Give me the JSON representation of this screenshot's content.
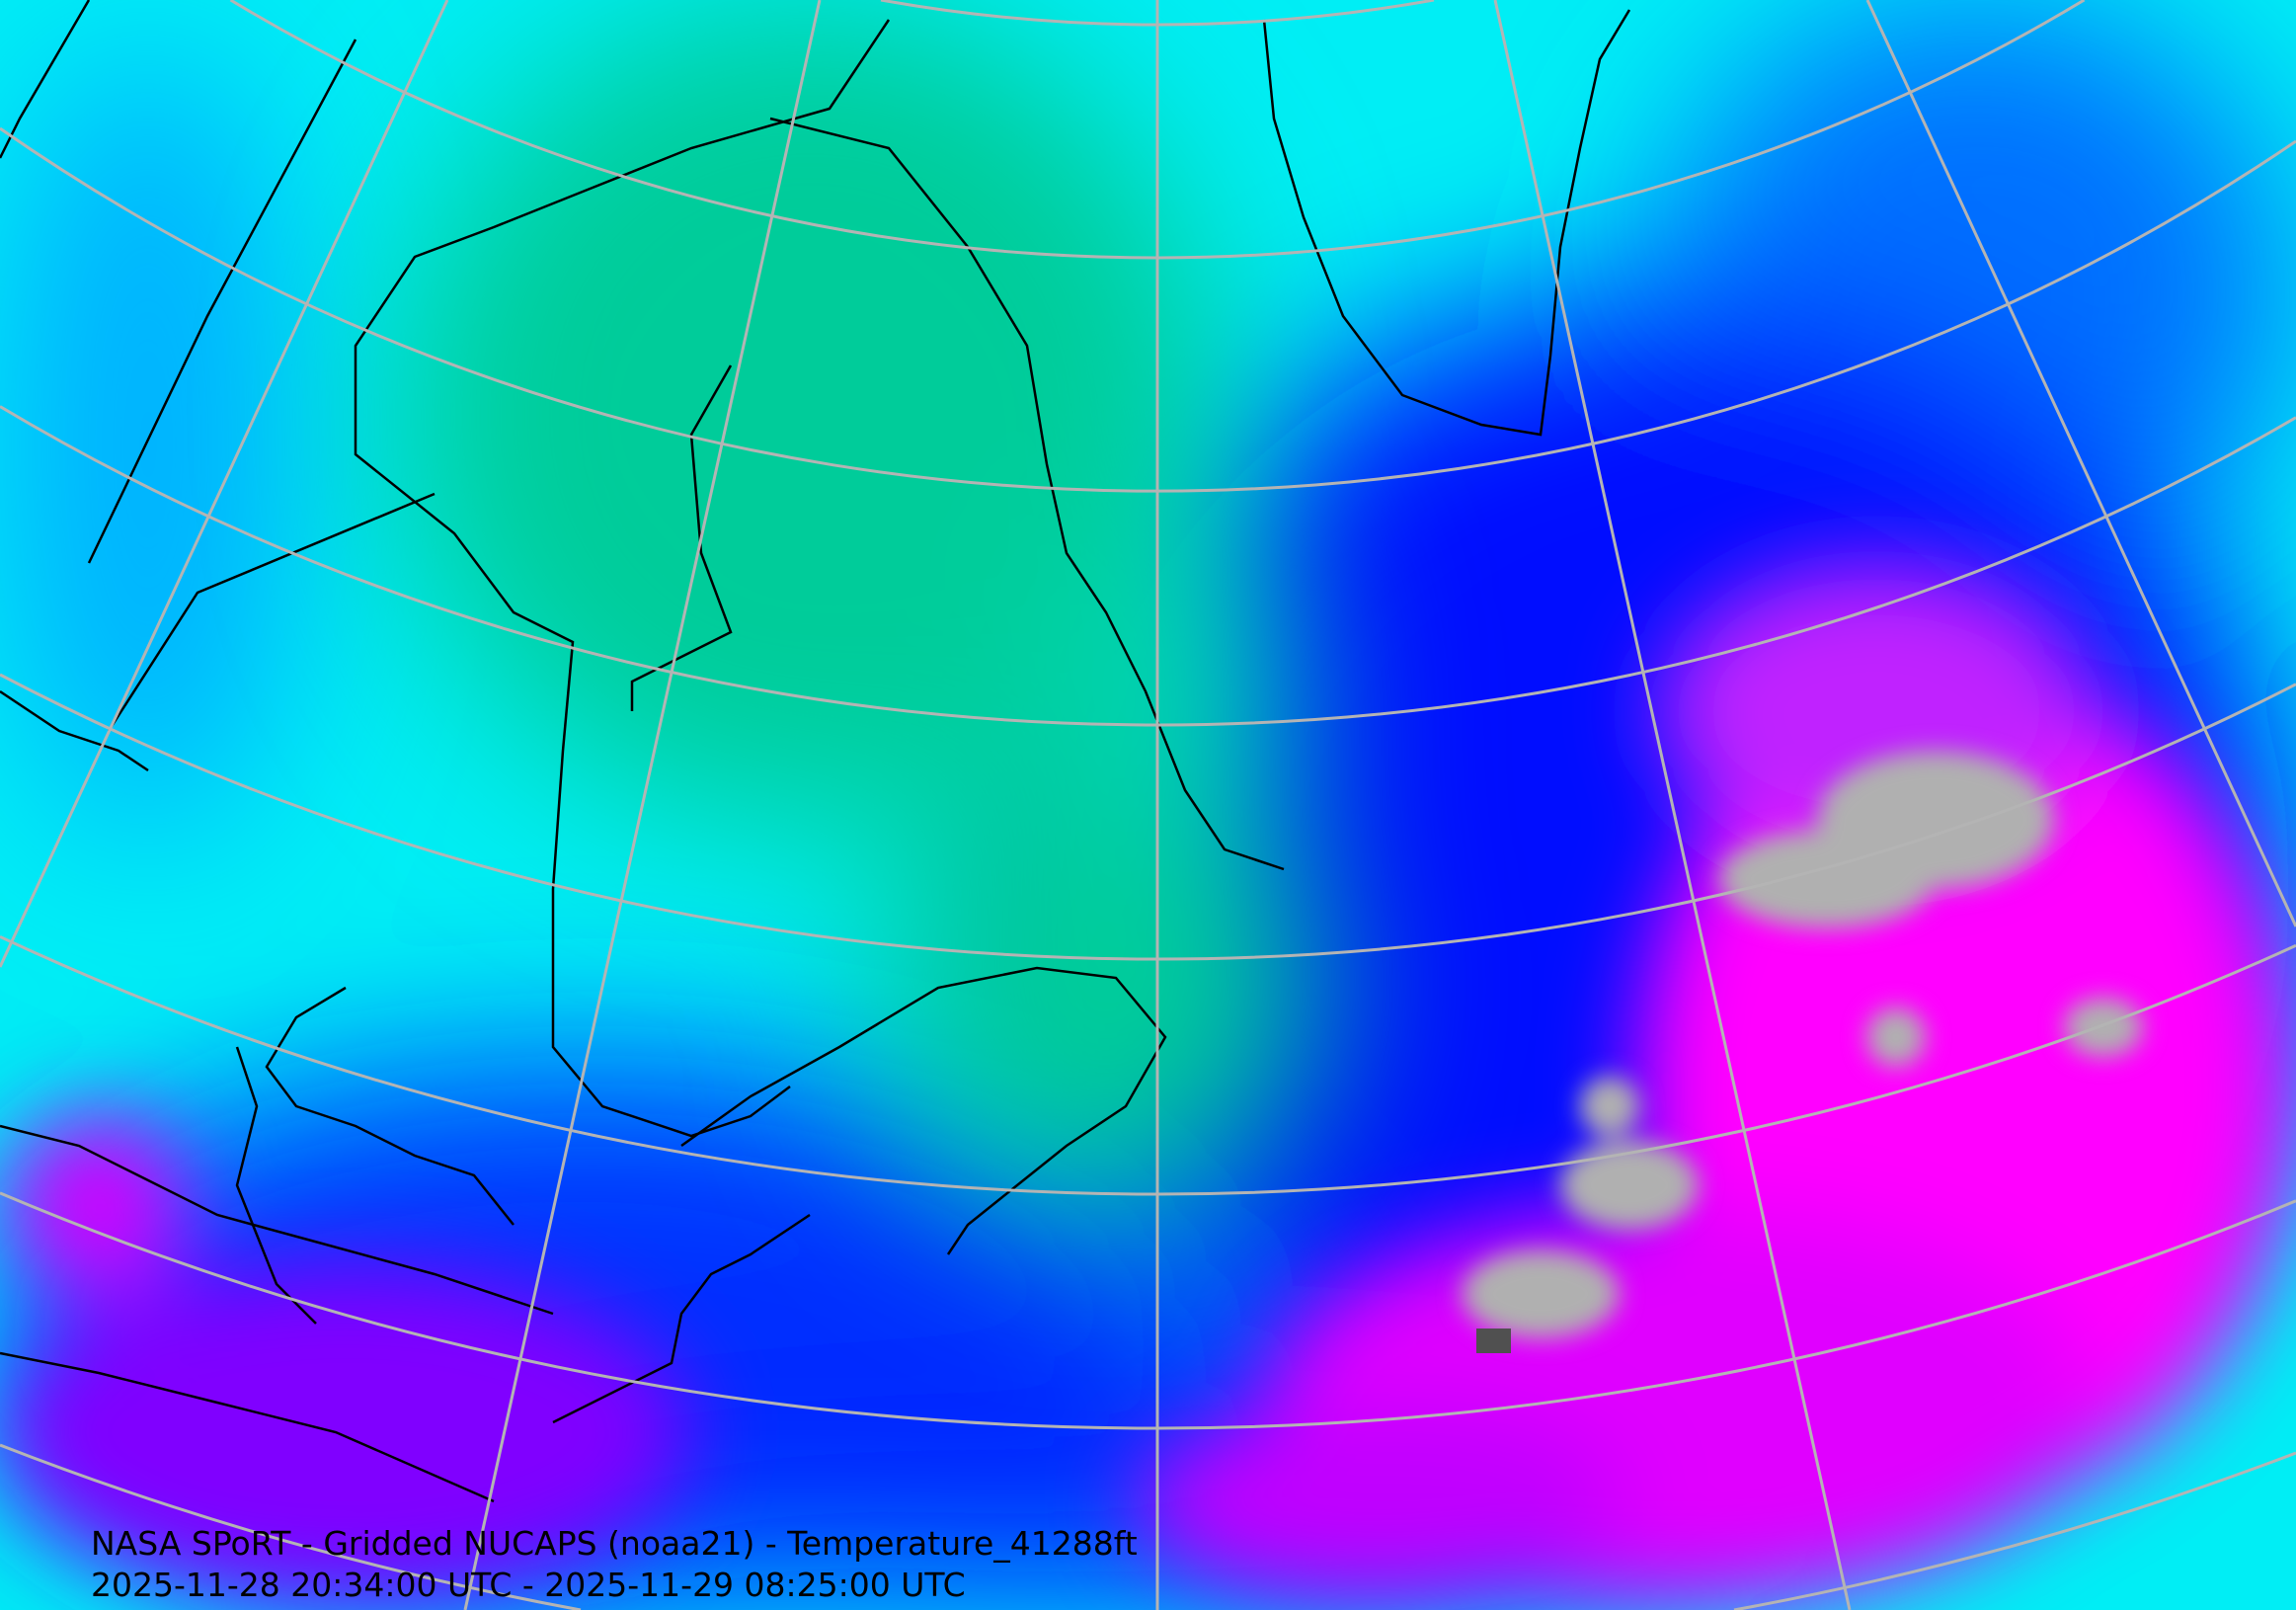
{
  "map": {
    "title": "NASA SPoRT - Gridded NUCAPS (noaa21) - Temperature_41288ft",
    "time_range": "2025-11-28 20:34:00 UTC - 2025-11-29 08:25:00 UTC",
    "projection": "polar stereographic",
    "graticule_color": "#b4b4b4",
    "coastline_color": "#000000",
    "colormap": [
      "#ff00ff",
      "#8000ff",
      "#0000ff",
      "#0080ff",
      "#00ffff",
      "#00c890",
      "#b0b0b0",
      "#505050"
    ]
  }
}
